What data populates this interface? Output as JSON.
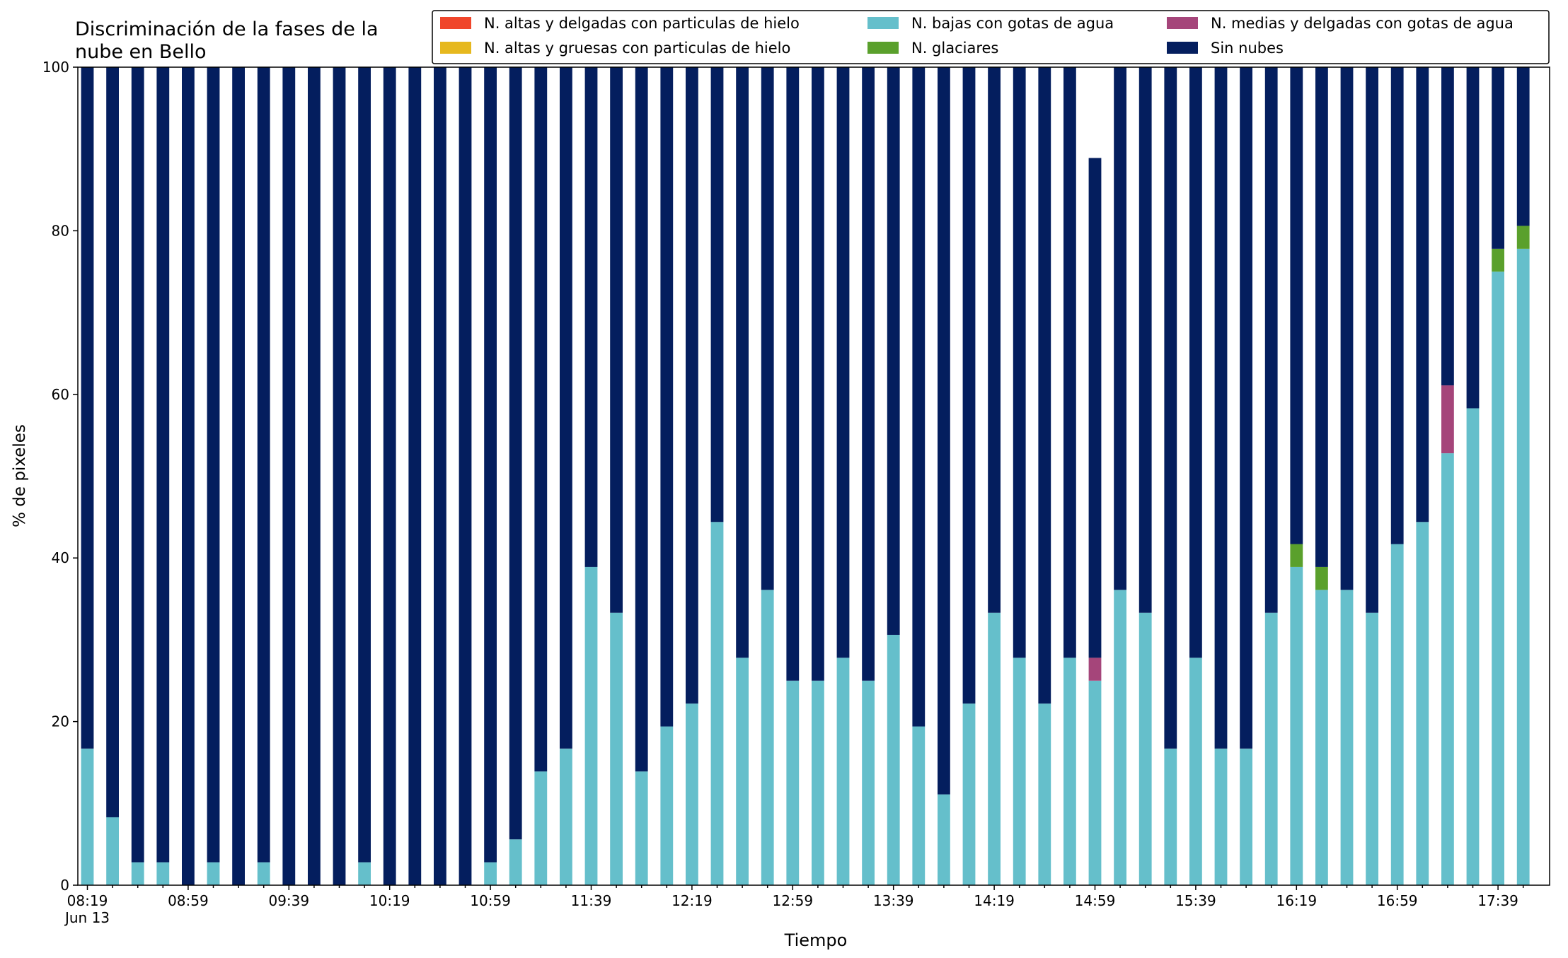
{
  "chart_data": {
    "type": "bar",
    "stacked": true,
    "title": "Discriminación de la fases de la\nnube en Bello",
    "xlabel": "Tiempo",
    "ylabel": "% de pixeles",
    "ylim": [
      0,
      100
    ],
    "yticks": [
      0,
      20,
      40,
      60,
      80,
      100
    ],
    "xtick_labels": [
      "08:19",
      "08:59",
      "09:39",
      "10:19",
      "10:59",
      "11:39",
      "12:19",
      "12:59",
      "13:39",
      "14:19",
      "14:59",
      "15:39",
      "16:19",
      "16:59",
      "17:39"
    ],
    "xtick_sublabel": "Jun 13",
    "categories": [
      "08:19",
      "08:29",
      "08:39",
      "08:49",
      "08:59",
      "09:09",
      "09:19",
      "09:29",
      "09:39",
      "09:49",
      "09:59",
      "10:09",
      "10:19",
      "10:29",
      "10:39",
      "10:49",
      "10:59",
      "11:09",
      "11:19",
      "11:29",
      "11:39",
      "11:49",
      "11:59",
      "12:09",
      "12:19",
      "12:29",
      "12:39",
      "12:49",
      "12:59",
      "13:09",
      "13:19",
      "13:29",
      "13:39",
      "13:49",
      "13:59",
      "14:09",
      "14:19",
      "14:29",
      "14:39",
      "14:49",
      "14:59",
      "15:09",
      "15:19",
      "15:29",
      "15:39",
      "15:49",
      "15:59",
      "16:09",
      "16:19",
      "16:29",
      "16:39",
      "16:49",
      "16:59",
      "17:09",
      "17:19",
      "17:29",
      "17:39",
      "17:49"
    ],
    "series": [
      {
        "name": "N. altas y delgadas con particulas de hielo",
        "color": "#f0462b",
        "values": [
          0,
          0,
          0,
          0,
          0,
          0,
          0,
          0,
          0,
          0,
          0,
          0,
          0,
          0,
          0,
          0,
          0,
          0,
          0,
          0,
          0,
          0,
          0,
          0,
          0,
          0,
          0,
          0,
          0,
          0,
          0,
          0,
          0,
          0,
          0,
          0,
          0,
          0,
          0,
          0,
          0,
          0,
          0,
          0,
          0,
          0,
          0,
          0,
          0,
          0,
          0,
          0,
          0,
          0,
          0,
          0,
          0,
          0
        ]
      },
      {
        "name": "N. altas y gruesas con particulas de hielo",
        "color": "#e6b81e",
        "values": [
          0,
          0,
          0,
          0,
          0,
          0,
          0,
          0,
          0,
          0,
          0,
          0,
          0,
          0,
          0,
          0,
          0,
          0,
          0,
          0,
          0,
          0,
          0,
          0,
          0,
          0,
          0,
          0,
          0,
          0,
          0,
          0,
          0,
          0,
          0,
          0,
          0,
          0,
          0,
          0,
          0,
          0,
          0,
          0,
          0,
          0,
          0,
          0,
          0,
          0,
          0,
          0,
          0,
          0,
          0,
          0,
          0,
          0
        ]
      },
      {
        "name": "N. bajas con gotas de agua",
        "color": "#65bfcb",
        "values": [
          16.7,
          8.3,
          2.8,
          2.8,
          0,
          2.8,
          0,
          2.8,
          0,
          0,
          0,
          2.8,
          0,
          0,
          0,
          0,
          2.8,
          5.6,
          13.9,
          16.7,
          38.9,
          33.3,
          13.9,
          19.4,
          22.2,
          44.4,
          27.8,
          36.1,
          25.0,
          25.0,
          27.8,
          25.0,
          30.6,
          19.4,
          11.1,
          22.2,
          33.3,
          27.8,
          22.2,
          27.8,
          25.0,
          36.1,
          33.3,
          16.7,
          27.8,
          16.7,
          16.7,
          33.3,
          38.9,
          36.1,
          36.1,
          33.3,
          41.7,
          44.4,
          52.8,
          58.3,
          75.0,
          77.8
        ]
      },
      {
        "name": "N. glaciares",
        "color": "#5aa02c",
        "values": [
          0,
          0,
          0,
          0,
          0,
          0,
          0,
          0,
          0,
          0,
          0,
          0,
          0,
          0,
          0,
          0,
          0,
          0,
          0,
          0,
          0,
          0,
          0,
          0,
          0,
          0,
          0,
          0,
          0,
          0,
          0,
          0,
          0,
          0,
          0,
          0,
          0,
          0,
          0,
          0,
          0,
          0,
          0,
          0,
          0,
          0,
          0,
          0,
          2.8,
          2.8,
          0,
          0,
          0,
          0,
          0,
          0,
          2.8,
          2.8
        ]
      },
      {
        "name": "N. medias y delgadas con gotas de agua",
        "color": "#a5457a",
        "values": [
          0,
          0,
          0,
          0,
          0,
          0,
          0,
          0,
          0,
          0,
          0,
          0,
          0,
          0,
          0,
          0,
          0,
          0,
          0,
          0,
          0,
          0,
          0,
          0,
          0,
          0,
          0,
          0,
          0,
          0,
          0,
          0,
          0,
          0,
          0,
          0,
          0,
          0,
          0,
          0,
          2.8,
          0,
          0,
          0,
          0,
          0,
          0,
          0,
          0,
          0,
          0,
          0,
          0,
          0,
          8.3,
          0,
          0,
          0
        ]
      },
      {
        "name": "Sin nubes",
        "color": "#041e5e",
        "values": [
          83.3,
          91.7,
          97.2,
          97.2,
          100,
          97.2,
          100,
          97.2,
          100,
          100,
          100,
          97.2,
          100,
          100,
          100,
          100,
          97.2,
          94.4,
          86.1,
          83.3,
          61.1,
          66.7,
          86.1,
          80.6,
          77.8,
          55.6,
          72.2,
          63.9,
          75.0,
          75.0,
          72.2,
          75.0,
          69.4,
          80.6,
          88.9,
          77.8,
          66.7,
          72.2,
          77.8,
          72.2,
          61.1,
          63.9,
          66.7,
          83.3,
          72.2,
          83.3,
          83.3,
          66.7,
          58.3,
          61.1,
          63.9,
          66.7,
          58.3,
          55.6,
          38.9,
          41.7,
          22.2,
          19.4
        ]
      }
    ],
    "legend_location": "top-right",
    "legend_columns": 3,
    "legend_order": [
      0,
      1,
      2,
      3,
      4,
      5
    ],
    "grid": false
  }
}
